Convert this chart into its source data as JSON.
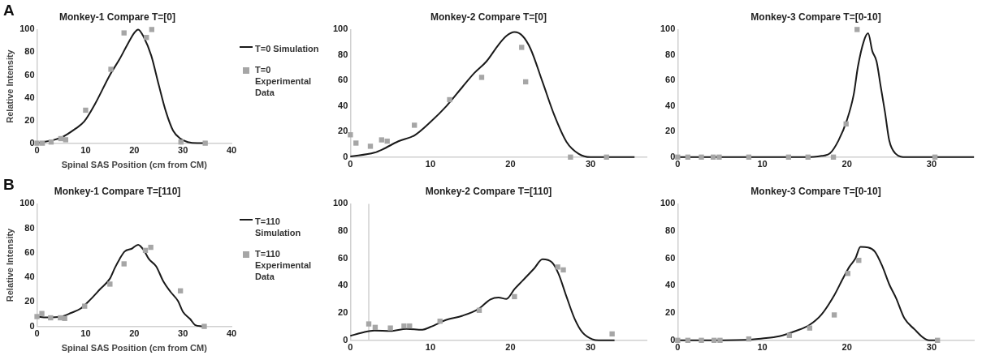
{
  "chart_data": [
    {
      "type": "line",
      "title": "Monkey-1 Compare T=[0]",
      "xlabel": "Spinal SAS Position (cm from CM)",
      "ylabel": "Relative Intensity",
      "annotations": [
        "A"
      ],
      "xlim": [
        0,
        40
      ],
      "xticks": [
        0,
        10,
        20,
        30,
        40
      ],
      "ylim": [
        0,
        100
      ],
      "yticks": [
        0,
        20,
        40,
        60,
        80,
        100
      ],
      "grid": false,
      "legend": "right",
      "series": [
        {
          "name": "T=0 Simulation",
          "type": "line",
          "color": "#1a1a1a",
          "marker": "none",
          "x": [
            0,
            5,
            8,
            9.7,
            12,
            15,
            17,
            18.5,
            20,
            20.8,
            22,
            23.5,
            25,
            26.5,
            28,
            29.5,
            31,
            33,
            35
          ],
          "values": [
            0,
            5,
            13,
            19,
            35,
            60,
            74,
            86,
            97,
            100,
            93,
            77,
            52,
            28,
            11,
            4,
            1,
            0,
            0
          ]
        },
        {
          "name": "T=0 Experimental Data",
          "type": "scatter",
          "color": "#a6a6a6",
          "marker": "square",
          "x": [
            0,
            1.1,
            2.9,
            4.9,
            5.9,
            10,
            15.2,
            17.9,
            22.5,
            23.6,
            29.6,
            34.6
          ],
          "values": [
            0,
            0,
            1,
            4,
            3,
            29,
            65,
            97,
            93,
            100,
            1,
            0
          ]
        }
      ]
    },
    {
      "type": "line",
      "title": "Monkey-2 Compare T=[0]",
      "xlim": [
        0,
        37
      ],
      "xticks": [
        0,
        10,
        20,
        30
      ],
      "ylim": [
        0,
        100
      ],
      "yticks": [
        0,
        20,
        40,
        60,
        80,
        100
      ],
      "grid": false,
      "series": [
        {
          "type": "line",
          "color": "#1a1a1a",
          "marker": "none",
          "x": [
            0,
            3,
            4,
            6,
            8,
            10,
            12,
            14,
            15.5,
            17,
            18.5,
            19.5,
            20.5,
            21.5,
            22.5,
            24,
            25.5,
            27,
            28.5,
            30,
            32,
            35.5
          ],
          "values": [
            0.5,
            3.5,
            6,
            12.4,
            17,
            27.5,
            40,
            55,
            66,
            75,
            88,
            95,
            98,
            95,
            85,
            59,
            32.5,
            12,
            2.7,
            0,
            0,
            0
          ]
        },
        {
          "type": "scatter",
          "color": "#a6a6a6",
          "marker": "square",
          "x": [
            0,
            0.7,
            2.5,
            3.9,
            4.6,
            8,
            12.4,
            16.4,
            21.4,
            21.9,
            27.5,
            32
          ],
          "values": [
            17.5,
            11,
            8.5,
            13.5,
            12.5,
            25,
            45,
            62.5,
            86,
            59,
            0,
            0
          ]
        }
      ]
    },
    {
      "type": "line",
      "title": "Monkey-3 Compare T=[0-10]",
      "xlim": [
        0,
        35
      ],
      "xticks": [
        0,
        10,
        20,
        30
      ],
      "ylim": [
        0,
        100
      ],
      "yticks": [
        0,
        20,
        40,
        60,
        80,
        100
      ],
      "grid": false,
      "series": [
        {
          "type": "line",
          "color": "#1a1a1a",
          "marker": "none",
          "x": [
            0,
            15,
            17,
            18,
            19,
            20,
            20.8,
            21.3,
            22,
            22.5,
            23,
            23.5,
            24,
            24.5,
            25,
            25.7,
            27,
            35
          ],
          "values": [
            0,
            0,
            1,
            3,
            13,
            29,
            49,
            71,
            91,
            97,
            83,
            75,
            55,
            35,
            13,
            3,
            0,
            0
          ]
        },
        {
          "type": "scatter",
          "color": "#a6a6a6",
          "marker": "square",
          "x": [
            0,
            1.2,
            2.8,
            4.2,
            4.9,
            8.4,
            13.1,
            15.4,
            18.4,
            19.9,
            21.2,
            30.4
          ],
          "values": [
            0,
            0,
            0,
            0,
            0,
            0,
            0,
            0,
            0,
            26,
            100,
            0
          ]
        }
      ]
    },
    {
      "type": "line",
      "title": "Monkey-1 Compare T=[110]",
      "xlabel": "Spinal SAS Position (cm from CM)",
      "ylabel": "Relative Intensity",
      "annotations": [
        "B"
      ],
      "xlim": [
        0,
        40
      ],
      "xticks": [
        0,
        10,
        20,
        30,
        40
      ],
      "ylim": [
        0,
        100
      ],
      "yticks": [
        0,
        20,
        40,
        60,
        80,
        100
      ],
      "grid": false,
      "legend": "right",
      "series": [
        {
          "name": "T=110 Simulation",
          "type": "line",
          "color": "#1a1a1a",
          "marker": "none",
          "x": [
            0,
            2,
            5,
            7,
            9,
            11,
            13,
            15,
            16,
            17,
            18,
            19.5,
            20.8,
            22,
            23,
            24.5,
            26,
            27.5,
            29,
            30,
            31.5,
            32.5,
            34
          ],
          "values": [
            8,
            7.3,
            8,
            11,
            14.6,
            22,
            30.5,
            39,
            47.6,
            55,
            61,
            63.4,
            66.6,
            62,
            55,
            49,
            36.6,
            28,
            20.7,
            12,
            6,
            1.2,
            0
          ]
        },
        {
          "name": "T=110 Experimental Data",
          "type": "scatter",
          "color": "#a6a6a6",
          "marker": "square",
          "x": [
            0,
            1,
            2.8,
            4.8,
            5.7,
            9.8,
            15,
            17.9,
            22.3,
            23.4,
            29.5,
            34.4
          ],
          "values": [
            8,
            10.5,
            7,
            7,
            6.5,
            16.5,
            34.5,
            51,
            62,
            64.5,
            29,
            0
          ]
        }
      ]
    },
    {
      "type": "line",
      "title": "Monkey-2 Compare T=[110]",
      "xlim": [
        0,
        37
      ],
      "xticks": [
        0,
        10,
        20,
        30
      ],
      "ylim": [
        0,
        100
      ],
      "yticks": [
        0,
        20,
        40,
        60,
        80,
        100
      ],
      "grid": false,
      "ref_lines": [
        {
          "axis": "x",
          "value": 2.3,
          "color": "#d0d0d0"
        }
      ],
      "series": [
        {
          "type": "line",
          "color": "#1a1a1a",
          "marker": "none",
          "x": [
            0,
            1.5,
            3,
            5,
            7,
            9,
            10,
            12,
            14,
            16,
            17.5,
            18.5,
            19.5,
            20.5,
            21.5,
            23,
            24,
            25.2,
            26,
            27,
            28,
            29,
            30.3,
            31,
            33
          ],
          "values": [
            3.3,
            5.7,
            7.2,
            6.8,
            8.4,
            7.8,
            9.8,
            15,
            18,
            23,
            30,
            31.4,
            30.3,
            37.5,
            43.6,
            52.9,
            59.4,
            57,
            48.8,
            32,
            16,
            5.7,
            0.6,
            0,
            0
          ]
        },
        {
          "type": "scatter",
          "color": "#a6a6a6",
          "marker": "square",
          "x": [
            2.3,
            3.1,
            5,
            6.7,
            7.4,
            11.2,
            16.1,
            20.5,
            25.9,
            26.6,
            32.7
          ],
          "values": [
            12,
            9.5,
            9,
            10.5,
            10.5,
            14,
            22,
            32,
            53.7,
            51.6,
            4.7
          ]
        }
      ]
    },
    {
      "type": "line",
      "title": "Monkey-3 Compare T=[0-10]",
      "xlim": [
        0,
        35
      ],
      "xticks": [
        0,
        10,
        20,
        30
      ],
      "ylim": [
        0,
        100
      ],
      "yticks": [
        0,
        20,
        40,
        60,
        80,
        100
      ],
      "grid": false,
      "series": [
        {
          "type": "line",
          "color": "#1a1a1a",
          "marker": "none",
          "x": [
            0,
            8,
            10,
            12,
            14,
            15.5,
            17,
            18.5,
            19.5,
            20.3,
            21,
            21.6,
            22.5,
            23.3,
            24.2,
            25,
            25.8,
            26.8,
            28,
            29,
            29.7,
            30.7
          ],
          "values": [
            0,
            0.4,
            1.4,
            3,
            7,
            11,
            19,
            33,
            45,
            54,
            60,
            68.4,
            68,
            65,
            54,
            41,
            31,
            16,
            8,
            2,
            0,
            0
          ]
        },
        {
          "type": "scatter",
          "color": "#a6a6a6",
          "marker": "square",
          "x": [
            0,
            1.2,
            2.8,
            4.3,
            5,
            8.4,
            13.2,
            15.6,
            18.5,
            20.1,
            21.4,
            30.7
          ],
          "values": [
            0,
            0,
            0,
            0,
            0,
            1,
            3.6,
            9,
            18.6,
            49,
            58.6,
            0
          ]
        }
      ]
    }
  ]
}
